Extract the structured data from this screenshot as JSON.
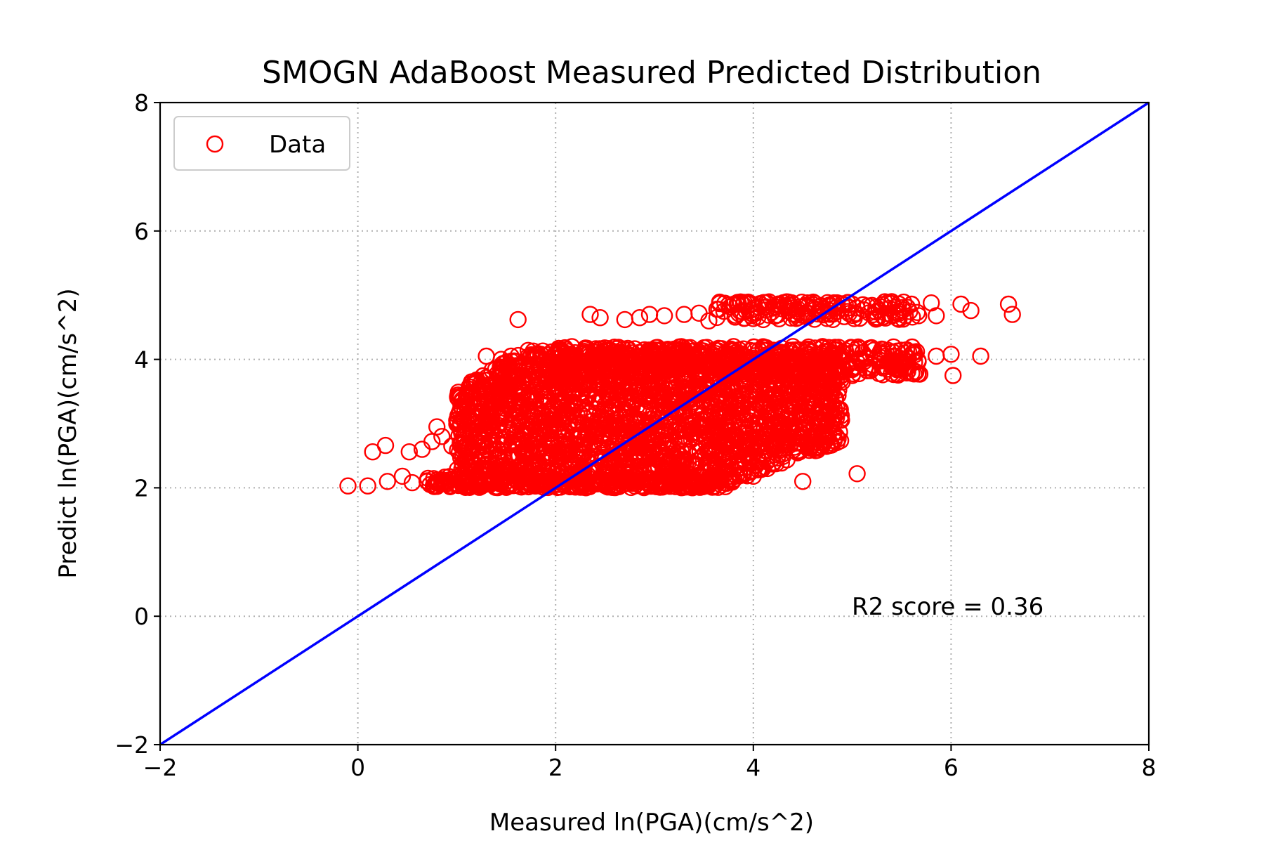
{
  "chart_data": {
    "type": "scatter",
    "title": "SMOGN AdaBoost Measured Predicted Distribution",
    "xlabel": "Measured ln(PGA)(cm/s^2)",
    "ylabel": "Predict ln(PGA)(cm/s^2)",
    "xlim": [
      -2,
      8
    ],
    "ylim": [
      -2,
      8
    ],
    "xticks": [
      -2,
      0,
      2,
      4,
      6,
      8
    ],
    "yticks": [
      -2,
      0,
      2,
      4,
      6,
      8
    ],
    "xtick_labels": [
      "−2",
      "0",
      "2",
      "4",
      "6",
      "8"
    ],
    "ytick_labels": [
      "−2",
      "0",
      "2",
      "4",
      "6",
      "8"
    ],
    "grid": true,
    "legend": {
      "position": "top-left",
      "entries": [
        "Data"
      ]
    },
    "annotation": "R2 score = 0.36",
    "reference_line": {
      "x": [
        -2,
        8
      ],
      "y": [
        -2,
        8
      ],
      "color": "#0000ff"
    },
    "series": [
      {
        "name": "Data",
        "marker": "open-circle",
        "color": "#ff0000",
        "points": [
          [
            -0.1,
            2.03
          ],
          [
            0.1,
            2.03
          ],
          [
            0.3,
            2.1
          ],
          [
            0.45,
            2.18
          ],
          [
            0.55,
            2.08
          ],
          [
            0.7,
            2.1
          ],
          [
            0.8,
            2.12
          ],
          [
            0.9,
            2.06
          ],
          [
            0.15,
            2.56
          ],
          [
            0.28,
            2.66
          ],
          [
            0.52,
            2.56
          ],
          [
            0.65,
            2.6
          ],
          [
            0.75,
            2.72
          ],
          [
            0.8,
            2.95
          ],
          [
            0.85,
            2.8
          ],
          [
            0.95,
            2.65
          ],
          [
            1.0,
            3.05
          ],
          [
            1.05,
            2.85
          ],
          [
            1.1,
            3.45
          ],
          [
            1.15,
            3.65
          ],
          [
            1.2,
            3.1
          ],
          [
            1.25,
            3.3
          ],
          [
            1.3,
            3.45
          ],
          [
            1.35,
            3.55
          ],
          [
            1.3,
            4.05
          ],
          [
            1.45,
            4.0
          ],
          [
            1.55,
            4.05
          ],
          [
            1.62,
            4.62
          ],
          [
            1.75,
            4.05
          ],
          [
            1.85,
            4.08
          ],
          [
            2.05,
            4.1
          ],
          [
            1.2,
            2.05
          ],
          [
            1.4,
            2.02
          ],
          [
            1.6,
            2.04
          ],
          [
            1.8,
            2.03
          ],
          [
            2.0,
            2.05
          ],
          [
            2.2,
            2.04
          ],
          [
            2.4,
            2.06
          ],
          [
            2.6,
            2.05
          ],
          [
            2.8,
            2.03
          ],
          [
            3.0,
            2.05
          ],
          [
            3.2,
            2.08
          ],
          [
            3.4,
            2.06
          ],
          [
            3.6,
            2.1
          ],
          [
            3.75,
            2.18
          ],
          [
            3.9,
            2.2
          ],
          [
            4.0,
            2.18
          ],
          [
            2.35,
            4.7
          ],
          [
            2.45,
            4.65
          ],
          [
            2.7,
            4.62
          ],
          [
            2.85,
            4.65
          ],
          [
            2.95,
            4.7
          ],
          [
            3.1,
            4.68
          ],
          [
            3.3,
            4.7
          ],
          [
            3.45,
            4.72
          ],
          [
            3.55,
            4.6
          ],
          [
            3.65,
            4.78
          ],
          [
            3.75,
            4.85
          ],
          [
            3.9,
            4.85
          ],
          [
            4.0,
            4.7
          ],
          [
            4.1,
            4.62
          ],
          [
            4.25,
            4.85
          ],
          [
            4.4,
            4.8
          ],
          [
            4.55,
            4.88
          ],
          [
            4.7,
            4.75
          ],
          [
            4.85,
            4.82
          ],
          [
            5.0,
            4.86
          ],
          [
            5.2,
            4.84
          ],
          [
            5.4,
            4.87
          ],
          [
            5.6,
            4.86
          ],
          [
            5.8,
            4.88
          ],
          [
            5.85,
            4.68
          ],
          [
            6.1,
            4.86
          ],
          [
            6.2,
            4.76
          ],
          [
            6.58,
            4.86
          ],
          [
            6.62,
            4.7
          ],
          [
            2.3,
            4.1
          ],
          [
            2.6,
            4.12
          ],
          [
            2.9,
            4.15
          ],
          [
            3.2,
            4.16
          ],
          [
            3.5,
            4.18
          ],
          [
            3.8,
            4.2
          ],
          [
            4.1,
            4.18
          ],
          [
            4.4,
            4.2
          ],
          [
            4.7,
            4.2
          ],
          [
            5.0,
            4.18
          ],
          [
            5.3,
            4.16
          ],
          [
            5.55,
            4.15
          ],
          [
            5.65,
            4.12
          ],
          [
            5.85,
            4.05
          ],
          [
            6.0,
            4.08
          ],
          [
            6.3,
            4.05
          ],
          [
            6.02,
            3.75
          ],
          [
            5.2,
            3.85
          ],
          [
            5.0,
            3.75
          ],
          [
            4.9,
            3.65
          ],
          [
            4.8,
            3.5
          ],
          [
            4.7,
            3.35
          ],
          [
            4.68,
            2.95
          ],
          [
            4.65,
            2.8
          ],
          [
            4.5,
            2.9
          ],
          [
            4.4,
            2.85
          ],
          [
            4.5,
            2.1
          ],
          [
            5.05,
            2.22
          ],
          [
            4.45,
            2.7
          ],
          [
            4.3,
            2.6
          ]
        ]
      }
    ]
  }
}
